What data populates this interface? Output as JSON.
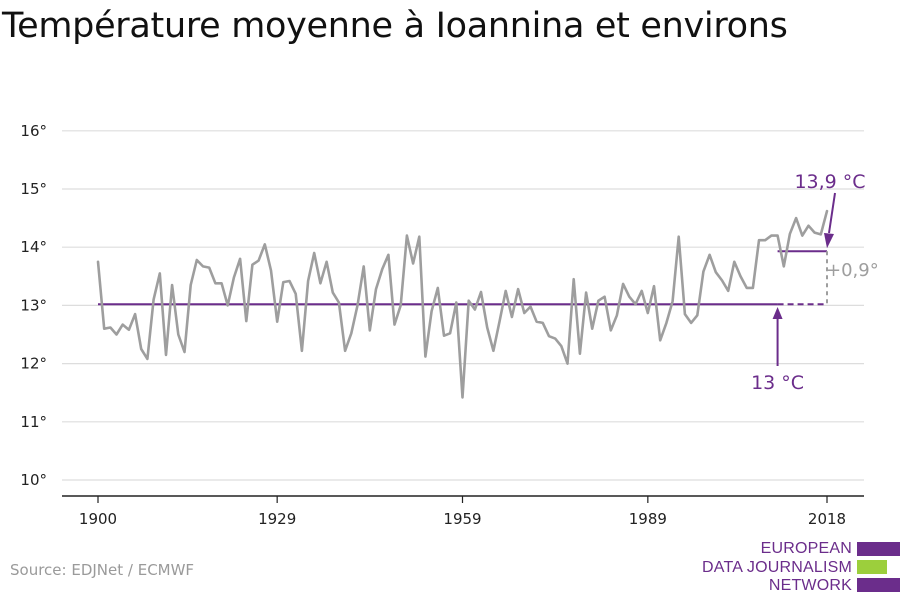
{
  "title": "Température moyenne à Ioannina et environs",
  "source": "Source: EDJNet / ECMWF",
  "logo": {
    "lines": [
      "EUROPEAN",
      "DATA JOURNALISM",
      "NETWORK"
    ],
    "colors": [
      "#6b2d8b",
      "#9ccf3c",
      "#6b2d8b"
    ]
  },
  "colors": {
    "series": "#9e9e9e",
    "accent": "#6b2d8b",
    "grid": "#dddddd",
    "axis": "#222222",
    "delta": "#9e9e9e"
  },
  "chart_data": {
    "type": "line",
    "title": "Température moyenne à Ioannina et environs",
    "xlabel": "",
    "ylabel": "",
    "x_ticks": [
      "1900",
      "1929",
      "1959",
      "1989",
      "2018"
    ],
    "y_ticks": [
      "10°",
      "11°",
      "12°",
      "13°",
      "14°",
      "15°",
      "16°"
    ],
    "ylim": [
      10,
      16
    ],
    "xlim": [
      1900,
      2018
    ],
    "grid": true,
    "series": [
      {
        "x_start": 1900,
        "x_end": 2018,
        "values": [
          13.75,
          12.6,
          12.62,
          12.5,
          12.67,
          12.58,
          12.85,
          12.25,
          12.08,
          13.1,
          13.55,
          12.15,
          13.35,
          12.5,
          12.2,
          13.35,
          13.78,
          13.67,
          13.65,
          13.38,
          13.38,
          13.0,
          13.48,
          13.8,
          12.73,
          13.7,
          13.77,
          14.05,
          13.6,
          12.72,
          13.4,
          13.42,
          13.2,
          12.22,
          13.42,
          13.9,
          13.38,
          13.75,
          13.22,
          13.05,
          12.22,
          12.52,
          13.0,
          13.67,
          12.57,
          13.28,
          13.62,
          13.87,
          12.67,
          13.0,
          14.2,
          13.72,
          14.18,
          12.12,
          12.9,
          13.3,
          12.48,
          12.52,
          13.05,
          11.42,
          13.08,
          12.93,
          13.23,
          12.62,
          12.22,
          12.73,
          13.25,
          12.8,
          13.28,
          12.87,
          12.98,
          12.72,
          12.7,
          12.47,
          12.43,
          12.3,
          12.0,
          13.45,
          12.17,
          13.22,
          12.6,
          13.08,
          13.15,
          12.57,
          12.83,
          13.37,
          13.15,
          13.02,
          13.25,
          12.87,
          13.33,
          12.4,
          12.7,
          13.07,
          14.18,
          12.85,
          12.7,
          12.83,
          13.58,
          13.87,
          13.57,
          13.43,
          13.25,
          13.75,
          13.5,
          13.3,
          13.3,
          14.12,
          14.12,
          14.2,
          14.2,
          13.67,
          14.23,
          14.5,
          14.2,
          14.37,
          14.25,
          14.22,
          14.62
        ]
      }
    ],
    "reference_lines": [
      {
        "label": "13 °C",
        "value": 13.02,
        "x_from": 1900,
        "x_to": 2010,
        "dashed_x_to": 2018
      },
      {
        "label": "13,9 °C",
        "value": 13.93,
        "x_from": 2010,
        "x_to": 2018
      }
    ],
    "annotations": [
      {
        "text": "13,9 °C"
      },
      {
        "text": "13 °C"
      },
      {
        "text": "+0,9°"
      }
    ]
  }
}
